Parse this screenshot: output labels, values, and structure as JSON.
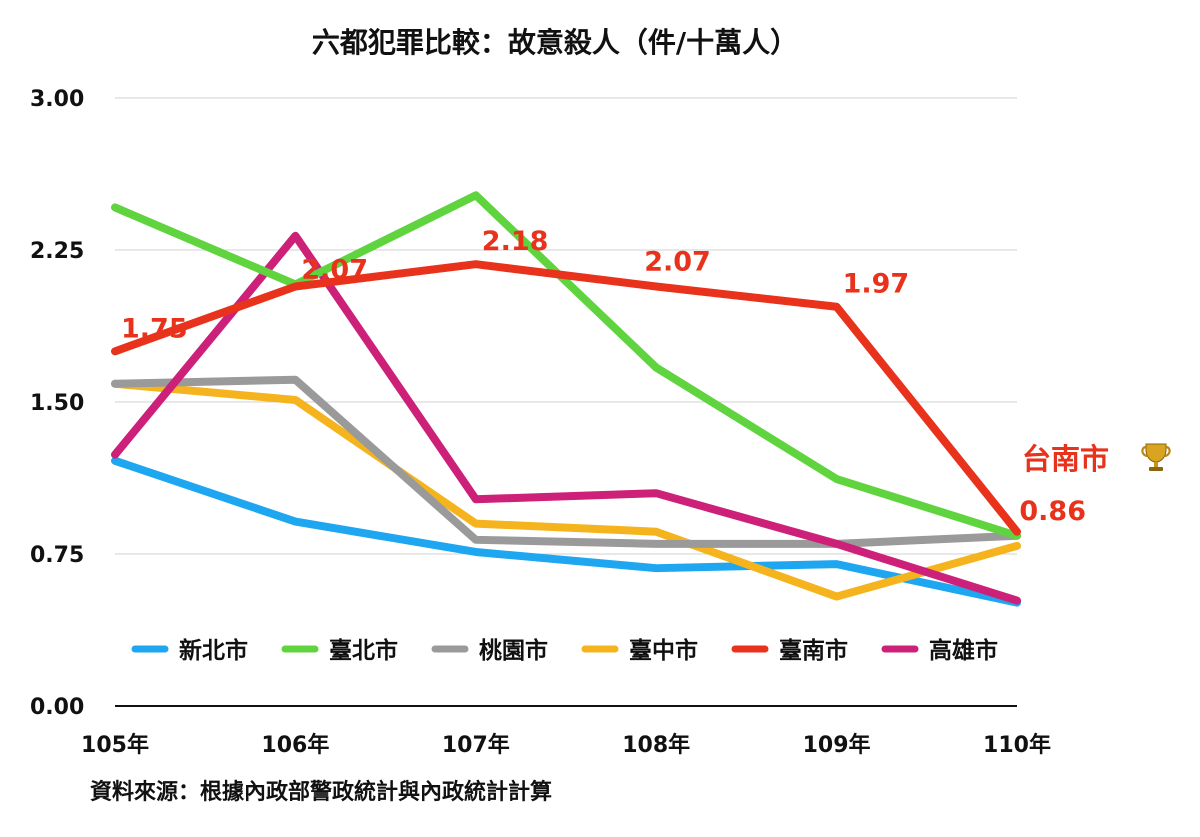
{
  "chart_data": {
    "type": "line",
    "title": "六都犯罪比較：故意殺人（件/十萬人）",
    "categories": [
      "105年",
      "106年",
      "107年",
      "108年",
      "109年",
      "110年"
    ],
    "ylim": [
      0,
      3
    ],
    "yticks": [
      "0.00",
      "0.75",
      "1.50",
      "2.25",
      "3.00"
    ],
    "ytick_values": [
      0,
      0.75,
      1.5,
      2.25,
      3.0
    ],
    "grid": true,
    "legend_position": "bottom",
    "series": [
      {
        "name": "新北市",
        "color": "#1ea7f0",
        "values": [
          1.21,
          0.91,
          0.76,
          0.68,
          0.7,
          0.51
        ]
      },
      {
        "name": "臺北市",
        "color": "#5fd43e",
        "values": [
          2.46,
          2.08,
          2.52,
          1.67,
          1.12,
          0.84
        ]
      },
      {
        "name": "桃園市",
        "color": "#9a9a9a",
        "values": [
          1.59,
          1.61,
          0.82,
          0.8,
          0.8,
          0.84
        ]
      },
      {
        "name": "臺中市",
        "color": "#f5b41e",
        "values": [
          1.59,
          1.51,
          0.9,
          0.86,
          0.54,
          0.79
        ]
      },
      {
        "name": "臺南市",
        "color": "#e8321c",
        "values": [
          1.75,
          2.07,
          2.18,
          2.07,
          1.97,
          0.86
        ]
      },
      {
        "name": "高雄市",
        "color": "#cc2079",
        "values": [
          1.24,
          2.32,
          1.02,
          1.05,
          0.8,
          0.52
        ]
      }
    ],
    "data_labels": {
      "series": "臺南市",
      "labels": [
        "1.75",
        "2.07",
        "2.18",
        "2.07",
        "1.97",
        "0.86"
      ]
    },
    "annotation": {
      "text": "台南市",
      "icon": "trophy-icon"
    },
    "source": "資料來源：根據內政部警政統計與內政統計計算"
  }
}
